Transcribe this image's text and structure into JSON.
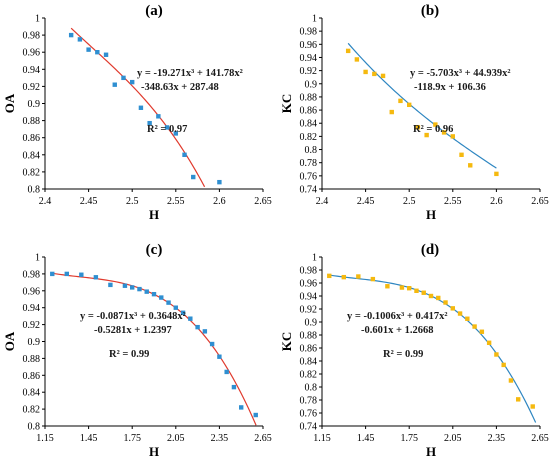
{
  "colors": {
    "axis": "#000000",
    "marker_blue": "#2f8fd1",
    "marker_orange": "#f5b90f",
    "curve_red": "#e03a2d",
    "curve_blue": "#2e86c1"
  },
  "chart_data": [
    {
      "type": "scatter",
      "title": "(a)",
      "xlabel": "H",
      "ylabel": "OA",
      "xlim": [
        2.4,
        2.65
      ],
      "ylim": [
        0.8,
        1.0
      ],
      "x_ticks": [
        "2.4",
        "2.45",
        "2.5",
        "2.55",
        "2.6",
        "2.65"
      ],
      "y_ticks": [
        "0.8",
        "0.82",
        "0.84",
        "0.86",
        "0.88",
        "0.9",
        "0.92",
        "0.94",
        "0.96",
        "0.98",
        "1"
      ],
      "equation_line1": "y = -19.271x³ + 141.78x²",
      "equation_line2": "-348.63x + 287.48",
      "r2": "R² = 0.97",
      "marker_color": "#2f8fd1",
      "curve_color": "#e03a2d",
      "fit_coeffs": [
        -19.271,
        141.78,
        -348.63,
        287.48
      ],
      "fit_x_range": [
        2.43,
        2.6
      ],
      "points": [
        [
          2.43,
          0.98
        ],
        [
          2.44,
          0.975
        ],
        [
          2.45,
          0.963
        ],
        [
          2.46,
          0.96
        ],
        [
          2.47,
          0.957
        ],
        [
          2.48,
          0.922
        ],
        [
          2.49,
          0.93
        ],
        [
          2.5,
          0.925
        ],
        [
          2.51,
          0.895
        ],
        [
          2.52,
          0.877
        ],
        [
          2.53,
          0.885
        ],
        [
          2.54,
          0.872
        ],
        [
          2.55,
          0.865
        ],
        [
          2.56,
          0.84
        ],
        [
          2.57,
          0.814
        ],
        [
          2.6,
          0.808
        ]
      ]
    },
    {
      "type": "scatter",
      "title": "(b)",
      "xlabel": "H",
      "ylabel": "KC",
      "xlim": [
        2.4,
        2.65
      ],
      "ylim": [
        0.74,
        1.0
      ],
      "x_ticks": [
        "2.4",
        "2.45",
        "2.5",
        "2.55",
        "2.6",
        "2.65"
      ],
      "y_ticks": [
        "0.74",
        "0.76",
        "0.78",
        "0.8",
        "0.82",
        "0.84",
        "0.86",
        "0.88",
        "0.9",
        "0.92",
        "0.94",
        "0.96",
        "0.98",
        "1"
      ],
      "equation_line1": "y = -5.703x³ + 44.939x²",
      "equation_line2": "-118.9x + 106.36",
      "r2": "R² = 0.96",
      "marker_color": "#f5b90f",
      "curve_color": "#2e86c1",
      "fit_coeffs": [
        -5.703,
        44.939,
        -118.9,
        106.36
      ],
      "fit_x_range": [
        2.43,
        2.6
      ],
      "points": [
        [
          2.43,
          0.95
        ],
        [
          2.44,
          0.937
        ],
        [
          2.45,
          0.918
        ],
        [
          2.46,
          0.915
        ],
        [
          2.47,
          0.912
        ],
        [
          2.48,
          0.857
        ],
        [
          2.49,
          0.874
        ],
        [
          2.5,
          0.868
        ],
        [
          2.51,
          0.834
        ],
        [
          2.52,
          0.822
        ],
        [
          2.53,
          0.838
        ],
        [
          2.54,
          0.826
        ],
        [
          2.55,
          0.82
        ],
        [
          2.56,
          0.792
        ],
        [
          2.57,
          0.776
        ],
        [
          2.6,
          0.763
        ]
      ]
    },
    {
      "type": "scatter",
      "title": "(c)",
      "xlabel": "H",
      "ylabel": "OA",
      "xlim": [
        1.15,
        2.65
      ],
      "ylim": [
        0.8,
        1.0
      ],
      "x_ticks": [
        "1.15",
        "1.45",
        "1.75",
        "2.05",
        "2.35",
        "2.65"
      ],
      "y_ticks": [
        "0.8",
        "0.82",
        "0.84",
        "0.86",
        "0.88",
        "0.9",
        "0.92",
        "0.94",
        "0.96",
        "0.98",
        "1"
      ],
      "equation_line1": "y = -0.0871x³ + 0.3648x²",
      "equation_line2": "-0.5281x + 1.2397",
      "r2": "R² = 0.99",
      "marker_color": "#2f8fd1",
      "curve_color": "#e03a2d",
      "fit_coeffs": [
        -0.0871,
        0.3648,
        -0.5281,
        1.2397
      ],
      "fit_x_range": [
        1.2,
        2.62
      ],
      "points": [
        [
          1.2,
          0.98
        ],
        [
          1.3,
          0.98
        ],
        [
          1.4,
          0.979
        ],
        [
          1.5,
          0.976
        ],
        [
          1.6,
          0.967
        ],
        [
          1.7,
          0.966
        ],
        [
          1.75,
          0.964
        ],
        [
          1.8,
          0.962
        ],
        [
          1.85,
          0.959
        ],
        [
          1.9,
          0.956
        ],
        [
          1.95,
          0.952
        ],
        [
          2.0,
          0.946
        ],
        [
          2.05,
          0.94
        ],
        [
          2.1,
          0.934
        ],
        [
          2.15,
          0.927
        ],
        [
          2.2,
          0.917
        ],
        [
          2.25,
          0.912
        ],
        [
          2.3,
          0.897
        ],
        [
          2.35,
          0.882
        ],
        [
          2.4,
          0.864
        ],
        [
          2.45,
          0.846
        ],
        [
          2.5,
          0.822
        ],
        [
          2.6,
          0.813
        ]
      ]
    },
    {
      "type": "scatter",
      "title": "(d)",
      "xlabel": "H",
      "ylabel": "KC",
      "xlim": [
        1.15,
        2.65
      ],
      "ylim": [
        0.74,
        1.0
      ],
      "x_ticks": [
        "1.15",
        "1.45",
        "1.75",
        "2.05",
        "2.35",
        "2.65"
      ],
      "y_ticks": [
        "0.74",
        "0.76",
        "0.78",
        "0.8",
        "0.82",
        "0.84",
        "0.86",
        "0.88",
        "0.9",
        "0.92",
        "0.94",
        "0.96",
        "0.98",
        "1"
      ],
      "equation_line1": "y = -0.1006x³ + 0.417x²",
      "equation_line2": "-0.601x + 1.2668",
      "r2": "R² = 0.99",
      "marker_color": "#f5b90f",
      "curve_color": "#2e86c1",
      "fit_coeffs": [
        -0.1006,
        0.417,
        -0.601,
        1.2668
      ],
      "fit_x_range": [
        1.2,
        2.62
      ],
      "points": [
        [
          1.2,
          0.971
        ],
        [
          1.3,
          0.969
        ],
        [
          1.4,
          0.97
        ],
        [
          1.5,
          0.966
        ],
        [
          1.6,
          0.955
        ],
        [
          1.7,
          0.953
        ],
        [
          1.75,
          0.952
        ],
        [
          1.8,
          0.948
        ],
        [
          1.85,
          0.945
        ],
        [
          1.9,
          0.94
        ],
        [
          1.95,
          0.937
        ],
        [
          2.0,
          0.93
        ],
        [
          2.05,
          0.921
        ],
        [
          2.1,
          0.913
        ],
        [
          2.15,
          0.905
        ],
        [
          2.2,
          0.893
        ],
        [
          2.25,
          0.885
        ],
        [
          2.3,
          0.868
        ],
        [
          2.35,
          0.85
        ],
        [
          2.4,
          0.834
        ],
        [
          2.45,
          0.81
        ],
        [
          2.5,
          0.781
        ],
        [
          2.6,
          0.77
        ]
      ]
    }
  ]
}
